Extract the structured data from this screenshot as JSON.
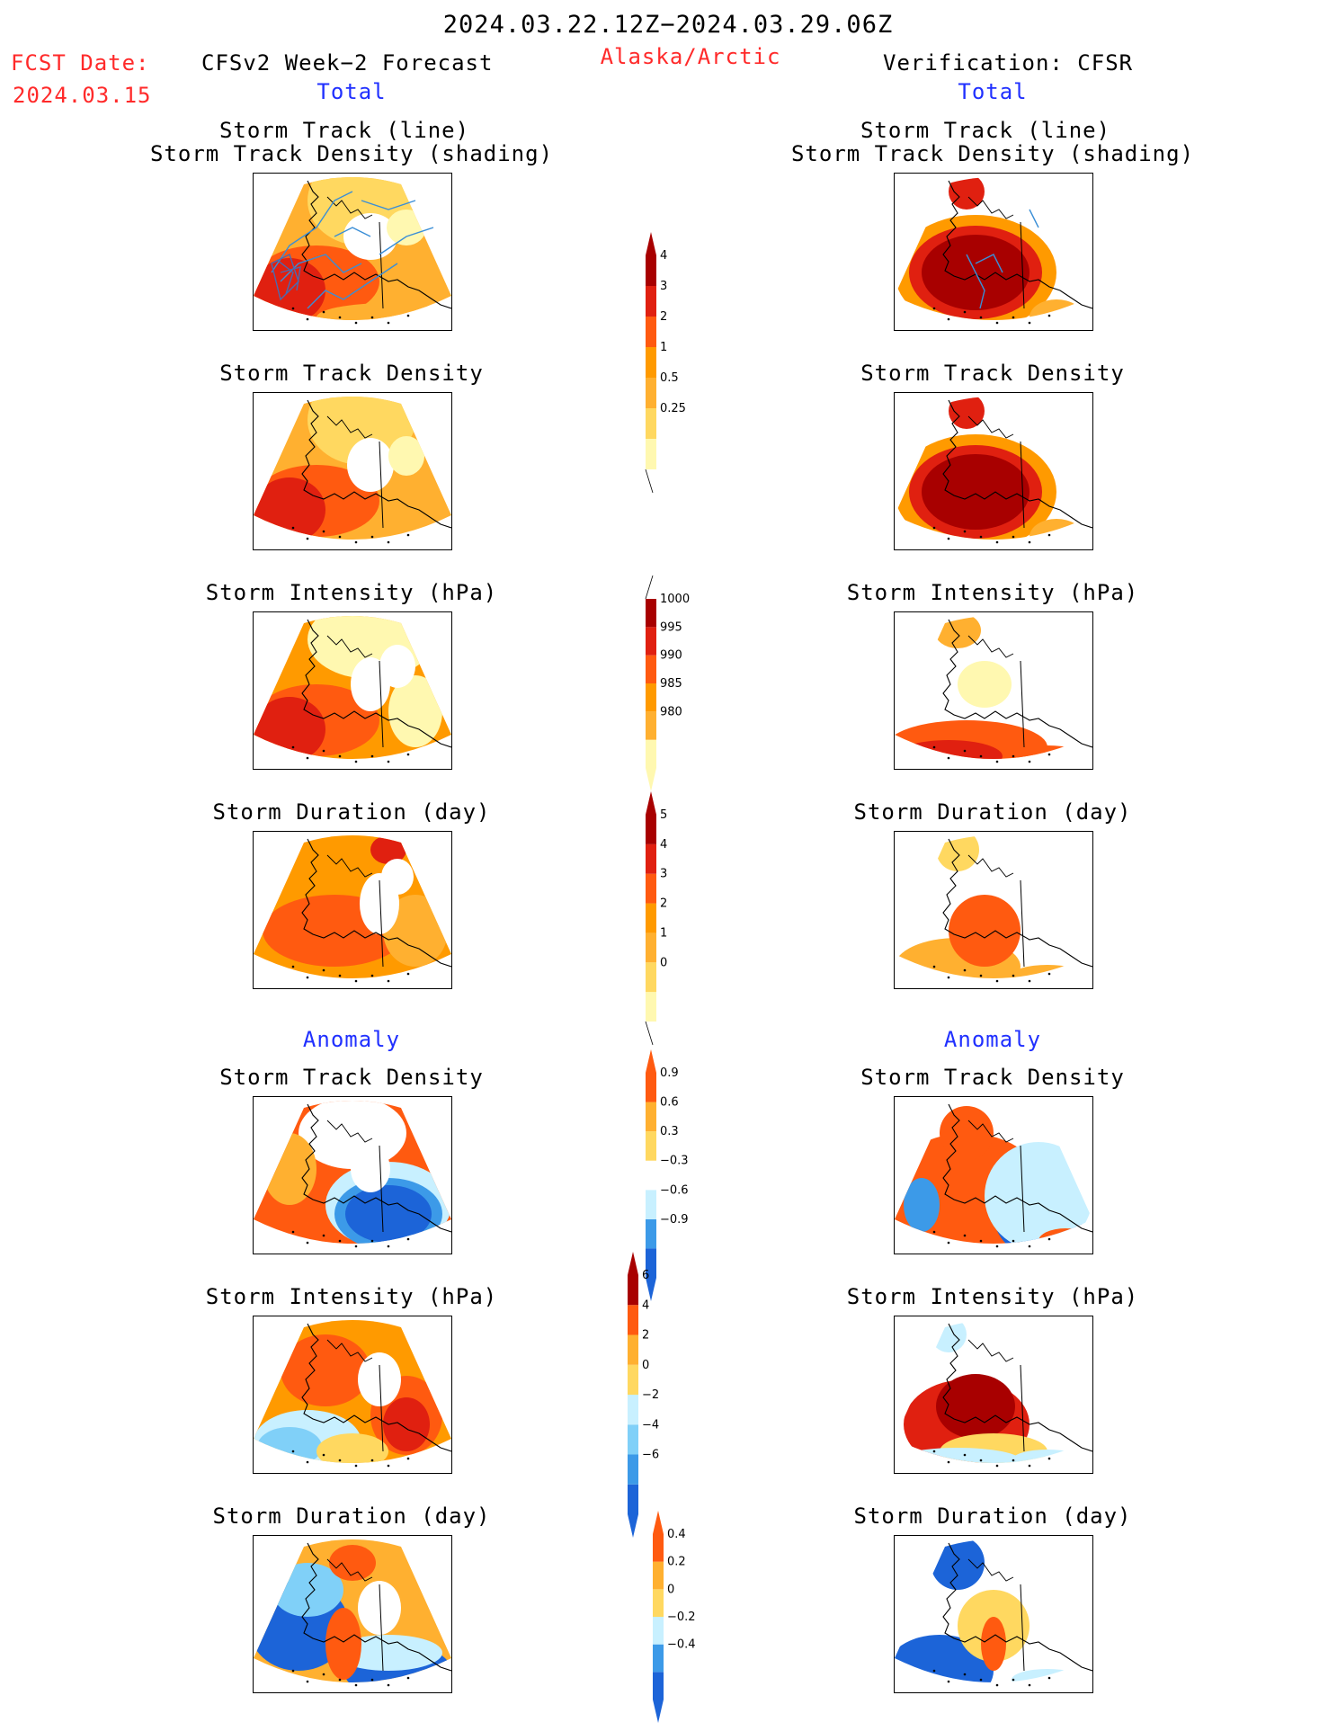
{
  "header": {
    "period": "2024.03.22.12Z−2024.03.29.06Z",
    "fcst_label": "FCST Date:",
    "fcst_date": "2024.03.15",
    "forecast_title": "CFSv2 Week−2 Forecast",
    "region": "Alaska/Arctic",
    "verification_title": "Verification: CFSR",
    "left_total": "Total",
    "right_total": "Total",
    "left_anomaly": "Anomaly",
    "right_anomaly": "Anomaly"
  },
  "titles": {
    "track_line": "Storm Track (line)",
    "track_density_shading": "Storm Track Density (shading)",
    "track_density": "Storm Track Density",
    "intensity": "Storm Intensity (hPa)",
    "duration": "Storm Duration (day)"
  },
  "colors": {
    "c1": "#fff8b0",
    "c2": "#ffd860",
    "c3": "#ffb030",
    "c4": "#ff9a00",
    "c5": "#ff5a10",
    "c6": "#e02010",
    "c7": "#a80000",
    "b1": "#c8f0ff",
    "b2": "#80d0f8",
    "b3": "#3c9ae8",
    "b4": "#1c64d8",
    "track": "#3a8ed6",
    "track_dark": "#4a6ab0"
  },
  "chart_data": [
    {
      "type": "heatmap",
      "side": "forecast",
      "row": "track_map",
      "title": "Storm Track (line) / Storm Track Density (shading)"
    },
    {
      "type": "heatmap",
      "side": "forecast",
      "row": "track_density",
      "title": "Storm Track Density"
    },
    {
      "type": "heatmap",
      "side": "forecast",
      "row": "intensity",
      "title": "Storm Intensity (hPa)"
    },
    {
      "type": "heatmap",
      "side": "forecast",
      "row": "duration",
      "title": "Storm Duration (day)"
    },
    {
      "type": "heatmap",
      "side": "forecast",
      "row": "anom_density",
      "title": "Storm Track Density"
    },
    {
      "type": "heatmap",
      "side": "forecast",
      "row": "anom_intensity",
      "title": "Storm Intensity (hPa)"
    },
    {
      "type": "heatmap",
      "side": "forecast",
      "row": "anom_duration",
      "title": "Storm Duration (day)"
    },
    {
      "type": "heatmap",
      "side": "verification",
      "row": "track_map",
      "title": "Storm Track (line) / Storm Track Density (shading)"
    },
    {
      "type": "heatmap",
      "side": "verification",
      "row": "track_density",
      "title": "Storm Track Density"
    },
    {
      "type": "heatmap",
      "side": "verification",
      "row": "intensity",
      "title": "Storm Intensity (hPa)"
    },
    {
      "type": "heatmap",
      "side": "verification",
      "row": "duration",
      "title": "Storm Duration (day)"
    },
    {
      "type": "heatmap",
      "side": "verification",
      "row": "anom_density",
      "title": "Storm Track Density"
    },
    {
      "type": "heatmap",
      "side": "verification",
      "row": "anom_intensity",
      "title": "Storm Intensity (hPa)"
    },
    {
      "type": "heatmap",
      "side": "verification",
      "row": "anom_duration",
      "title": "Storm Duration (day)"
    }
  ],
  "colorbars": {
    "density": {
      "labels": [
        "4",
        "3",
        "2",
        "1",
        "0.5",
        "0.25"
      ]
    },
    "intensity": {
      "labels": [
        "1000",
        "995",
        "990",
        "985",
        "980"
      ]
    },
    "duration": {
      "labels": [
        "5",
        "4",
        "3",
        "2",
        "1",
        "0"
      ]
    },
    "anom_density": {
      "labels": [
        "0.9",
        "0.6",
        "0.3",
        "−0.3",
        "−0.6",
        "−0.9"
      ]
    },
    "anom_intensity": {
      "labels": [
        "6",
        "4",
        "2",
        "0",
        "−2",
        "−4",
        "−6"
      ]
    },
    "anom_duration": {
      "labels": [
        "0.4",
        "0.2",
        "0",
        "−0.2",
        "−0.4"
      ]
    }
  }
}
